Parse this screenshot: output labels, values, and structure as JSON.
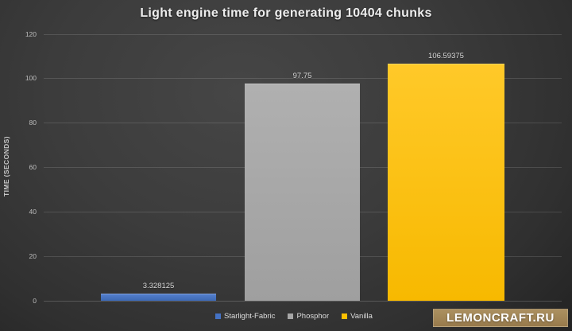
{
  "title": "Light engine time for generating 10404 chunks",
  "watermark": {
    "label": "LEMONCRAFT.RU",
    "background": "#a08455"
  },
  "chart_data": {
    "type": "bar",
    "title": "Light engine time for generating 10404 chunks",
    "xlabel": "",
    "ylabel": "TIME (SECONDS)",
    "categories": [
      "Starlight-Fabric",
      "Phosphor",
      "Vanilla"
    ],
    "values": [
      3.328125,
      97.75,
      106.59375
    ],
    "value_labels": [
      "3.328125",
      "97.75",
      "106.59375"
    ],
    "bar_colors": [
      "#4472c4",
      "#a6a6a6",
      "#ffc000"
    ],
    "bar_gradients": [
      [
        "#5580ce",
        "#3d69b4"
      ],
      [
        "#b0b0b0",
        "#9f9f9f"
      ],
      [
        "#ffc929",
        "#f7b900"
      ]
    ],
    "ylim": [
      0,
      120
    ],
    "yticks": [
      0,
      20,
      40,
      60,
      80,
      100,
      120
    ],
    "grid": "horizontal",
    "legend_position": "bottom",
    "background": "dark-radial-vignette"
  }
}
